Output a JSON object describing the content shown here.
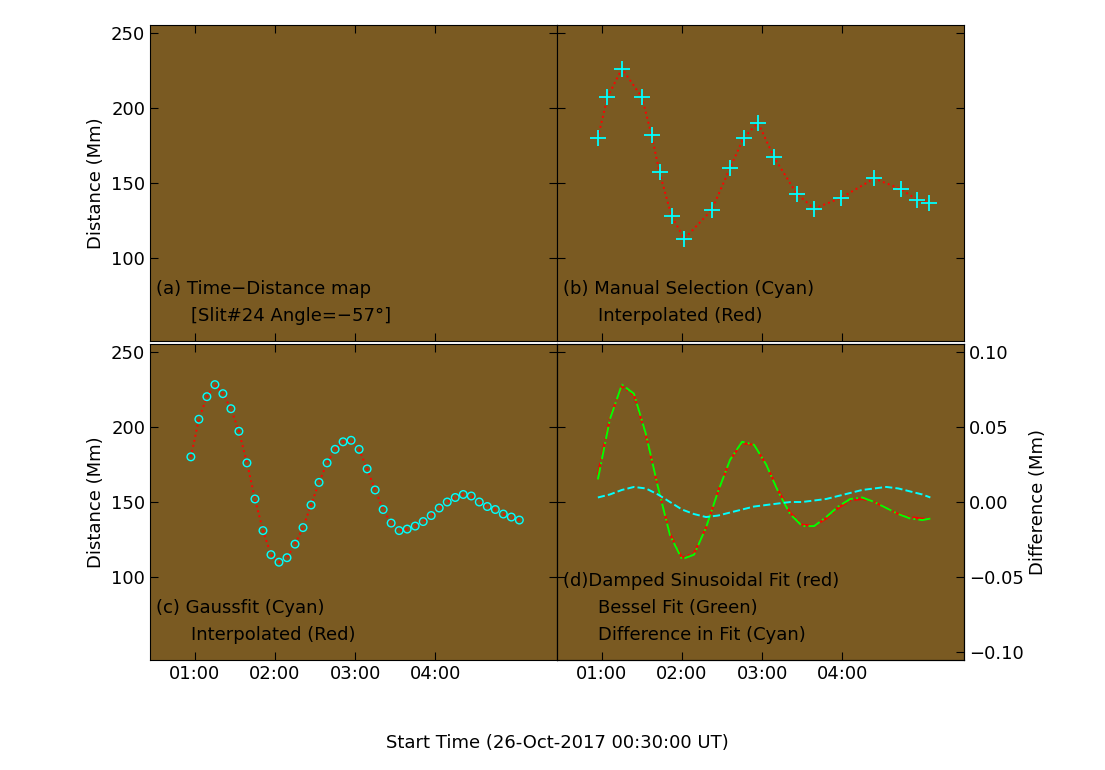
{
  "x_label": "Start Time (26-Oct-2017 00:30:00 UT)",
  "chart_data": [
    {
      "type": "line",
      "annotation": [
        "(a) Time−Distance map",
        "[Slit#24 Angle=−57°]"
      ],
      "y_label": "Distance (Mm)",
      "tick_labels": "y",
      "xlim": [
        0.44,
        5.52
      ],
      "xticks": [
        {
          "value": 1,
          "label": "01:00"
        },
        {
          "value": 2,
          "label": "02:00"
        },
        {
          "value": 3,
          "label": "03:00"
        },
        {
          "value": 4,
          "label": "04:00"
        }
      ],
      "ylim": [
        45,
        255
      ],
      "yticks": [
        100,
        150,
        200,
        250
      ],
      "series": []
    },
    {
      "type": "scatter",
      "annotation": [
        "(b) Manual Selection (Cyan)",
        "Interpolated (Red)"
      ],
      "tick_labels": false,
      "xlim": [
        0.44,
        5.52
      ],
      "xticks": [
        {
          "value": 1,
          "label": "01:00"
        },
        {
          "value": 2,
          "label": "02:00"
        },
        {
          "value": 3,
          "label": "03:00"
        },
        {
          "value": 4,
          "label": "04:00"
        }
      ],
      "ylim": [
        45,
        255
      ],
      "yticks": [
        100,
        150,
        200,
        250
      ],
      "series": [
        {
          "type": "line",
          "color": "#ff0000",
          "line_style": "dotted",
          "x": [
            0.95,
            1.07,
            1.25,
            1.5,
            1.62,
            1.72,
            1.87,
            2.03,
            2.37,
            2.6,
            2.77,
            2.95,
            3.15,
            3.43,
            3.65,
            3.98,
            4.4,
            4.73,
            4.93,
            5.08
          ],
          "values": [
            180,
            207,
            226,
            207,
            182,
            157,
            128,
            113,
            132,
            160,
            180,
            190,
            167,
            143,
            133,
            140,
            153,
            146,
            139,
            137
          ]
        },
        {
          "type": "scatter",
          "color": "#00ffff",
          "marker": "plus",
          "x": [
            0.95,
            1.07,
            1.25,
            1.5,
            1.62,
            1.72,
            1.87,
            2.03,
            2.37,
            2.6,
            2.77,
            2.95,
            3.15,
            3.43,
            3.65,
            3.98,
            4.4,
            4.73,
            4.93,
            5.08
          ],
          "values": [
            180,
            207,
            226,
            207,
            182,
            157,
            128,
            113,
            132,
            160,
            180,
            190,
            167,
            143,
            133,
            140,
            153,
            146,
            139,
            137
          ]
        }
      ]
    },
    {
      "type": "scatter",
      "annotation": [
        "(c) Gaussfit (Cyan)",
        "Interpolated (Red)"
      ],
      "y_label": "Distance (Mm)",
      "tick_labels": true,
      "xlim": [
        0.44,
        5.52
      ],
      "xticks": [
        {
          "value": 1,
          "label": "01:00"
        },
        {
          "value": 2,
          "label": "02:00"
        },
        {
          "value": 3,
          "label": "03:00"
        },
        {
          "value": 4,
          "label": "04:00"
        }
      ],
      "ylim": [
        45,
        255
      ],
      "yticks": [
        100,
        150,
        200,
        250
      ],
      "series": [
        {
          "type": "line",
          "color": "#ff0000",
          "line_style": "dotted",
          "x": [
            0.95,
            1.05,
            1.15,
            1.25,
            1.35,
            1.45,
            1.55,
            1.65,
            1.75,
            1.85,
            1.95,
            2.05,
            2.15,
            2.25,
            2.35,
            2.45,
            2.55,
            2.65,
            2.75,
            2.85,
            2.95,
            3.05,
            3.15,
            3.25,
            3.35,
            3.45,
            3.55,
            3.65,
            3.75,
            3.85,
            3.95,
            4.05,
            4.15,
            4.25,
            4.35,
            4.45,
            4.55,
            4.65,
            4.75,
            4.85,
            4.95,
            5.05
          ],
          "values": [
            180,
            205,
            220,
            228,
            222,
            212,
            197,
            176,
            152,
            131,
            115,
            110,
            113,
            122,
            133,
            148,
            163,
            176,
            185,
            190,
            191,
            185,
            172,
            158,
            145,
            136,
            131,
            132,
            134,
            137,
            141,
            146,
            150,
            153,
            155,
            154,
            150,
            147,
            145,
            142,
            140,
            138
          ]
        },
        {
          "type": "scatter",
          "color": "#00ffff",
          "marker": "circle",
          "x": [
            0.95,
            1.05,
            1.15,
            1.25,
            1.35,
            1.45,
            1.55,
            1.65,
            1.75,
            1.85,
            1.95,
            2.05,
            2.15,
            2.25,
            2.35,
            2.45,
            2.55,
            2.65,
            2.75,
            2.85,
            2.95,
            3.05,
            3.15,
            3.25,
            3.35,
            3.45,
            3.55,
            3.65,
            3.75,
            3.85,
            3.95,
            4.05,
            4.15,
            4.25,
            4.35,
            4.45,
            4.55,
            4.65,
            4.75,
            4.85,
            4.95,
            5.05
          ],
          "values": [
            180,
            205,
            220,
            228,
            222,
            212,
            197,
            176,
            152,
            131,
            115,
            110,
            113,
            122,
            133,
            148,
            163,
            176,
            185,
            190,
            191,
            185,
            172,
            158,
            145,
            136,
            131,
            132,
            134,
            137,
            141,
            146,
            150,
            153,
            155,
            154,
            150,
            147,
            145,
            142,
            140,
            138
          ]
        }
      ]
    },
    {
      "type": "line",
      "annotation": [
        "(d)Damped Sinusoidal Fit (red)",
        "Bessel Fit (Green)",
        "Difference in Fit (Cyan)"
      ],
      "y2_label": "Difference (Mm)",
      "tick_labels": "x",
      "xlim": [
        0.44,
        5.52
      ],
      "xticks": [
        {
          "value": 1,
          "label": "01:00"
        },
        {
          "value": 2,
          "label": "02:00"
        },
        {
          "value": 3,
          "label": "03:00"
        },
        {
          "value": 4,
          "label": "04:00"
        }
      ],
      "ylim": [
        45,
        255
      ],
      "yticks": [
        100,
        150,
        200,
        250
      ],
      "y2lim": [
        -0.105,
        0.105
      ],
      "y2ticks": [
        {
          "value": -0.1,
          "label": "−0.10"
        },
        {
          "value": -0.05,
          "label": "−0.05"
        },
        {
          "value": 0.0,
          "label": "0.00"
        },
        0.05,
        {
          "value": 0.1,
          "label": "0.10"
        }
      ],
      "series": [
        {
          "type": "line",
          "color": "#ff0000",
          "line_style": "dashdot",
          "x": [
            0.95,
            1.1,
            1.25,
            1.4,
            1.55,
            1.7,
            1.85,
            2.0,
            2.15,
            2.3,
            2.45,
            2.6,
            2.75,
            2.9,
            3.05,
            3.2,
            3.35,
            3.5,
            3.65,
            3.8,
            3.95,
            4.1,
            4.25,
            4.4,
            4.55,
            4.7,
            4.85,
            5.0,
            5.1
          ],
          "values": [
            168,
            206,
            227,
            221,
            194,
            160,
            129,
            113,
            116,
            133,
            157,
            178,
            189,
            188,
            175,
            158,
            143,
            135,
            134,
            139,
            146,
            151,
            152,
            150,
            146,
            142,
            140,
            139,
            139
          ]
        },
        {
          "type": "line",
          "color": "#00ff00",
          "line_style": "dashdot",
          "x": [
            0.95,
            1.1,
            1.25,
            1.4,
            1.55,
            1.7,
            1.85,
            2.0,
            2.15,
            2.3,
            2.45,
            2.6,
            2.75,
            2.9,
            3.05,
            3.2,
            3.35,
            3.5,
            3.65,
            3.8,
            3.95,
            4.1,
            4.25,
            4.4,
            4.55,
            4.7,
            4.85,
            5.0,
            5.1
          ],
          "values": [
            165,
            205,
            228,
            222,
            195,
            160,
            128,
            112,
            115,
            133,
            157,
            178,
            190,
            188,
            175,
            157,
            142,
            134,
            134,
            140,
            147,
            152,
            153,
            150,
            146,
            142,
            139,
            138,
            139
          ]
        },
        {
          "type": "line",
          "color": "#00ffff",
          "line_style": "dashed",
          "axis": "y2",
          "x": [
            0.95,
            1.1,
            1.25,
            1.4,
            1.55,
            1.7,
            1.85,
            2.0,
            2.15,
            2.3,
            2.45,
            2.6,
            2.75,
            2.9,
            3.05,
            3.2,
            3.35,
            3.5,
            3.65,
            3.8,
            3.95,
            4.1,
            4.25,
            4.4,
            4.55,
            4.7,
            4.85,
            5.0,
            5.1
          ],
          "values": [
            0.003,
            0.005,
            0.008,
            0.01,
            0.009,
            0.005,
            0.0,
            -0.005,
            -0.008,
            -0.01,
            -0.009,
            -0.007,
            -0.005,
            -0.003,
            -0.002,
            -0.001,
            0.0,
            0.0,
            0.001,
            0.002,
            0.004,
            0.006,
            0.008,
            0.009,
            0.01,
            0.009,
            0.007,
            0.005,
            0.003
          ]
        }
      ]
    }
  ]
}
